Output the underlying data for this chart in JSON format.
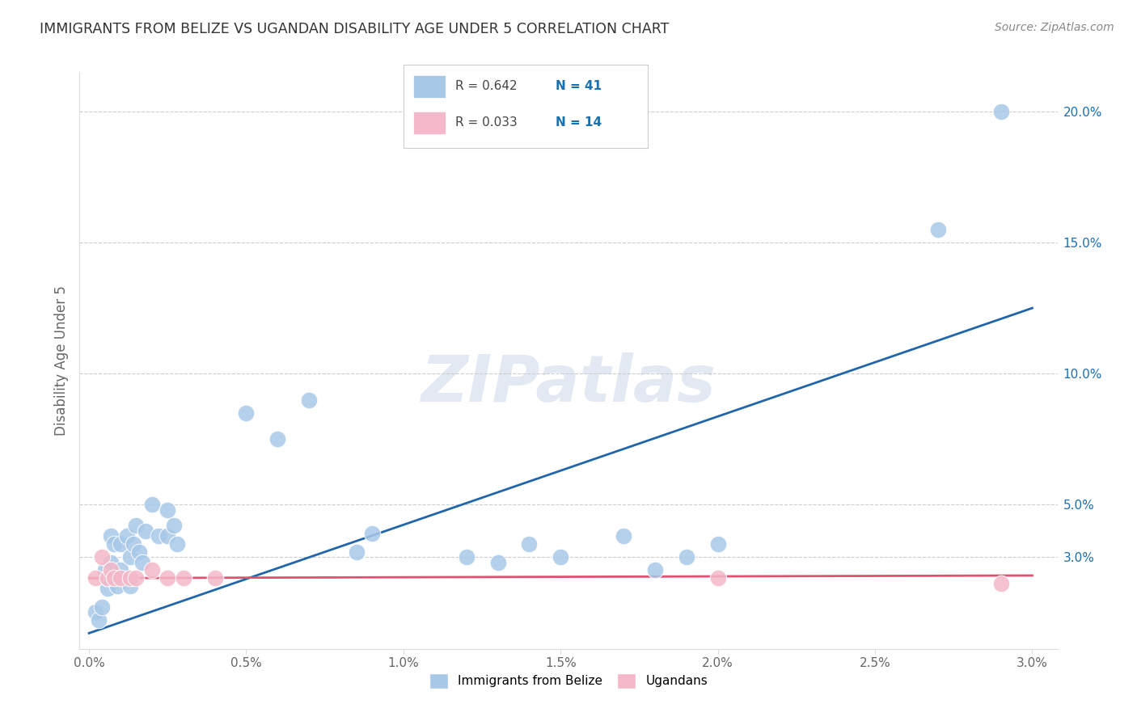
{
  "title": "IMMIGRANTS FROM BELIZE VS UGANDAN DISABILITY AGE UNDER 5 CORRELATION CHART",
  "source": "Source: ZipAtlas.com",
  "ylabel": "Disability Age Under 5",
  "legend_blue_label": "Immigrants from Belize",
  "legend_pink_label": "Ugandans",
  "watermark": "ZIPatlas",
  "blue_color": "#a8c8e8",
  "blue_line_color": "#2166ac",
  "pink_color": "#f4b8c8",
  "pink_line_color": "#e05070",
  "r_color": "#444444",
  "n_color": "#1a6faf",
  "blue_scatter_x": [
    0.0002,
    0.0003,
    0.0004,
    0.0005,
    0.0006,
    0.0006,
    0.0007,
    0.0007,
    0.0008,
    0.0009,
    0.001,
    0.001,
    0.0012,
    0.0013,
    0.0013,
    0.0014,
    0.0015,
    0.0016,
    0.0017,
    0.0018,
    0.002,
    0.0022,
    0.0025,
    0.0025,
    0.0027,
    0.0028,
    0.005,
    0.006,
    0.007,
    0.0085,
    0.009,
    0.012,
    0.013,
    0.014,
    0.015,
    0.017,
    0.018,
    0.019,
    0.02,
    0.027,
    0.029
  ],
  "blue_scatter_y": [
    0.009,
    0.006,
    0.011,
    0.025,
    0.018,
    0.022,
    0.038,
    0.028,
    0.035,
    0.019,
    0.035,
    0.025,
    0.038,
    0.03,
    0.019,
    0.035,
    0.042,
    0.032,
    0.028,
    0.04,
    0.05,
    0.038,
    0.048,
    0.038,
    0.042,
    0.035,
    0.085,
    0.075,
    0.09,
    0.032,
    0.039,
    0.03,
    0.028,
    0.035,
    0.03,
    0.038,
    0.025,
    0.03,
    0.035,
    0.155,
    0.2
  ],
  "pink_scatter_x": [
    0.0002,
    0.0004,
    0.0006,
    0.0007,
    0.0008,
    0.001,
    0.0013,
    0.0015,
    0.002,
    0.0025,
    0.003,
    0.004,
    0.02,
    0.029
  ],
  "pink_scatter_y": [
    0.022,
    0.03,
    0.022,
    0.025,
    0.022,
    0.022,
    0.022,
    0.022,
    0.025,
    0.022,
    0.022,
    0.022,
    0.022,
    0.02
  ],
  "blue_line_x0": 0.0,
  "blue_line_x1": 0.03,
  "blue_line_y0": 0.001,
  "blue_line_y1": 0.125,
  "pink_line_x0": 0.0,
  "pink_line_x1": 0.03,
  "pink_line_y0": 0.022,
  "pink_line_y1": 0.023,
  "ytick_positions": [
    0.03,
    0.05,
    0.1,
    0.15,
    0.2
  ],
  "ytick_labels": [
    "3.0%",
    "5.0%",
    "10.0%",
    "15.0%",
    "20.0%"
  ],
  "xtick_positions": [
    0.0,
    0.005,
    0.01,
    0.015,
    0.02,
    0.025,
    0.03
  ],
  "xtick_labels": [
    "0.0%",
    "0.5%",
    "1.0%",
    "1.5%",
    "2.0%",
    "2.5%",
    "3.0%"
  ],
  "xmin": -0.0003,
  "xmax": 0.0308,
  "ymin": -0.005,
  "ymax": 0.215
}
